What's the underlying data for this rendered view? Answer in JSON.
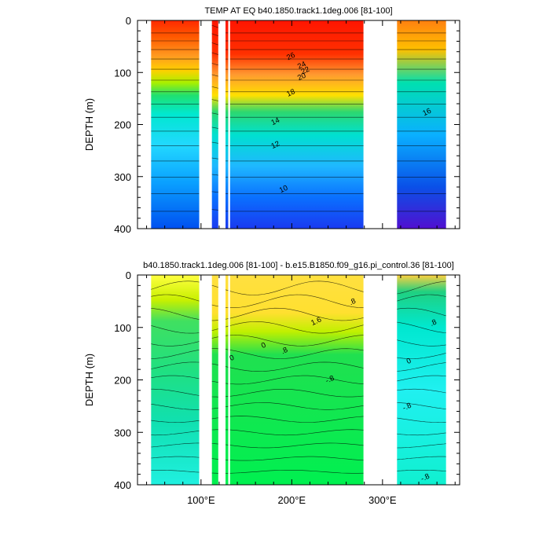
{
  "chart_data": [
    {
      "type": "contour",
      "title": "TEMP AT EQ b40.1850.track1.1deg.006 [81-100]",
      "xlabel": "",
      "ylabel": "DEPTH (m)",
      "xlim": [
        30,
        385
      ],
      "ylim": [
        400,
        0
      ],
      "y_ticks": [
        "0",
        "100",
        "200",
        "300",
        "400"
      ],
      "x_ticks": [],
      "land_gaps_lon": [
        [
          98,
          112
        ],
        [
          119,
          127
        ],
        [
          130,
          132
        ],
        [
          279,
          316
        ],
        [
          370,
          385
        ]
      ],
      "contour_labels": [
        {
          "text": "26",
          "lon": 200,
          "depth": 73
        },
        {
          "text": "24",
          "lon": 212,
          "depth": 90
        },
        {
          "text": "22",
          "lon": 216,
          "depth": 100
        },
        {
          "text": "20",
          "lon": 212,
          "depth": 112
        },
        {
          "text": "18",
          "lon": 200,
          "depth": 143
        },
        {
          "text": "16",
          "lon": 350,
          "depth": 180
        },
        {
          "text": "14",
          "lon": 183,
          "depth": 198
        },
        {
          "text": "12",
          "lon": 183,
          "depth": 243
        },
        {
          "text": "10",
          "lon": 192,
          "depth": 328
        }
      ]
    },
    {
      "type": "contour",
      "title": "b40.1850.track1.1deg.006 [81-100] - b.e15.B1850.f09_g16.pi_control.36 [81-100]",
      "xlabel": "",
      "ylabel": "DEPTH (m)",
      "xlim": [
        30,
        385
      ],
      "ylim": [
        400,
        0
      ],
      "y_ticks": [
        "0",
        "100",
        "200",
        "300",
        "400"
      ],
      "x_ticks": [
        "100°E",
        "200°E",
        "300°E"
      ],
      "land_gaps_lon": [
        [
          98,
          112
        ],
        [
          119,
          127
        ],
        [
          130,
          132
        ],
        [
          279,
          316
        ],
        [
          370,
          385
        ]
      ],
      "contour_labels": [
        {
          "text": "1.6",
          "lon": 228,
          "depth": 92
        },
        {
          "text": ".8",
          "lon": 268,
          "depth": 55
        },
        {
          "text": ".8",
          "lon": 357,
          "depth": 95
        },
        {
          "text": "0",
          "lon": 170,
          "depth": 138
        },
        {
          "text": ".8",
          "lon": 193,
          "depth": 148
        },
        {
          "text": "0",
          "lon": 135,
          "depth": 162
        },
        {
          "text": "0",
          "lon": 330,
          "depth": 168
        },
        {
          "text": "-.8",
          "lon": 243,
          "depth": 203
        },
        {
          "text": "-.8",
          "lon": 328,
          "depth": 255
        },
        {
          "text": "-.8",
          "lon": 348,
          "depth": 390
        }
      ]
    }
  ]
}
